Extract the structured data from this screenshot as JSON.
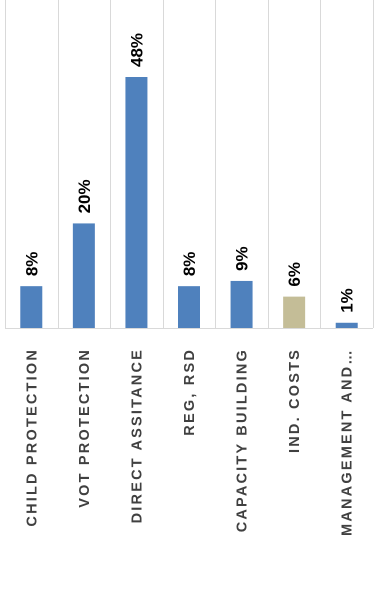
{
  "chart_data": {
    "type": "bar",
    "categories": [
      "CHILD PROTECTION",
      "VOT PROTECTION",
      "DIRECT ASSITANCE",
      "REG, RSD",
      "CAPACITY BUILDING",
      "IND. COSTS",
      "MANAGEMENT AND…"
    ],
    "values": [
      8,
      20,
      48,
      8,
      9,
      6,
      1
    ],
    "data_labels": [
      "8%",
      "20%",
      "48%",
      "8%",
      "9%",
      "6%",
      "1%"
    ],
    "bar_colors": [
      "#4f81bd",
      "#4f81bd",
      "#4f81bd",
      "#4f81bd",
      "#4f81bd",
      "#c4bd97",
      "#4f81bd"
    ],
    "ylim": [
      0,
      55
    ],
    "grid": "vertical separators between categories",
    "legend": "none",
    "title": "",
    "xlabel": "",
    "ylabel": "",
    "label_orientation": "rotated 90 degrees counter-clockwise"
  }
}
